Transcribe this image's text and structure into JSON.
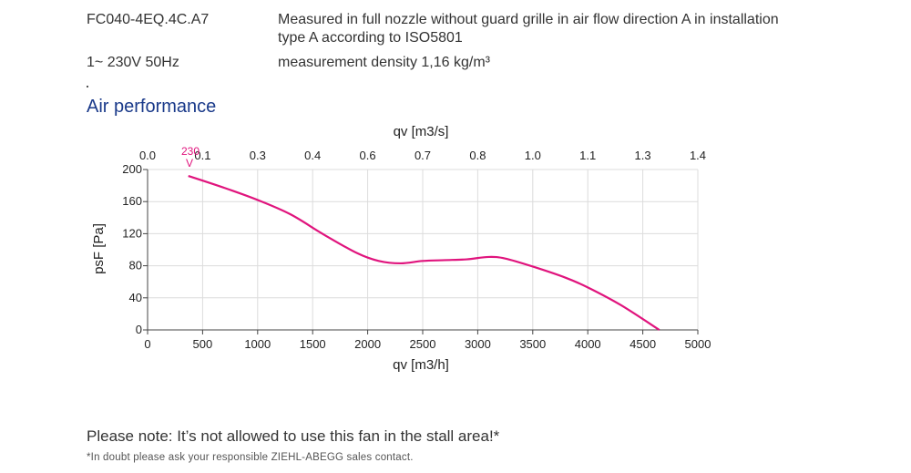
{
  "header": {
    "model": "FC040-4EQ.4C.A7",
    "supply": "1~ 230V 50Hz",
    "measurement_line1": "Measured in full nozzle without guard grille in air flow direction A in installation",
    "measurement_line2": "type A according to ISO5801",
    "density": "measurement density 1,16 kg/m³"
  },
  "section_title": "Air performance",
  "chart_data": {
    "type": "line",
    "title": "",
    "xlabel": "qv [m3/h]",
    "x2label": "qv [m3/s]",
    "ylabel": "psF [Pa]",
    "xlim": [
      0,
      5000
    ],
    "ylim": [
      0,
      200
    ],
    "x_ticks": [
      0,
      500,
      1000,
      1500,
      2000,
      2500,
      3000,
      3500,
      4000,
      4500,
      5000
    ],
    "y_ticks": [
      0,
      40,
      80,
      120,
      160,
      200
    ],
    "x2_tick_labels": [
      "0.0",
      "0.1",
      "0.3",
      "0.4",
      "0.6",
      "0.7",
      "0.8",
      "1.0",
      "1.1",
      "1.3",
      "1.4"
    ],
    "grid": true,
    "curve_label": "230",
    "curve_label_sub": "V",
    "series": [
      {
        "name": "",
        "color": "#e0147d",
        "x": [
          370,
          700,
          1000,
          1300,
          1600,
          1900,
          2100,
          2300,
          2500,
          2700,
          2900,
          3100,
          3250,
          3500,
          3800,
          4000,
          4300,
          4650
        ],
        "y": [
          192,
          177,
          162,
          144,
          119,
          96,
          86,
          83,
          86,
          87,
          88,
          91,
          89,
          79,
          65,
          53,
          31,
          0
        ]
      }
    ]
  },
  "footer": {
    "note": "Please note: It’s not allowed to use this fan in the stall area!*",
    "footnote": "*In doubt please ask your responsible ZIEHL-ABEGG sales contact."
  }
}
